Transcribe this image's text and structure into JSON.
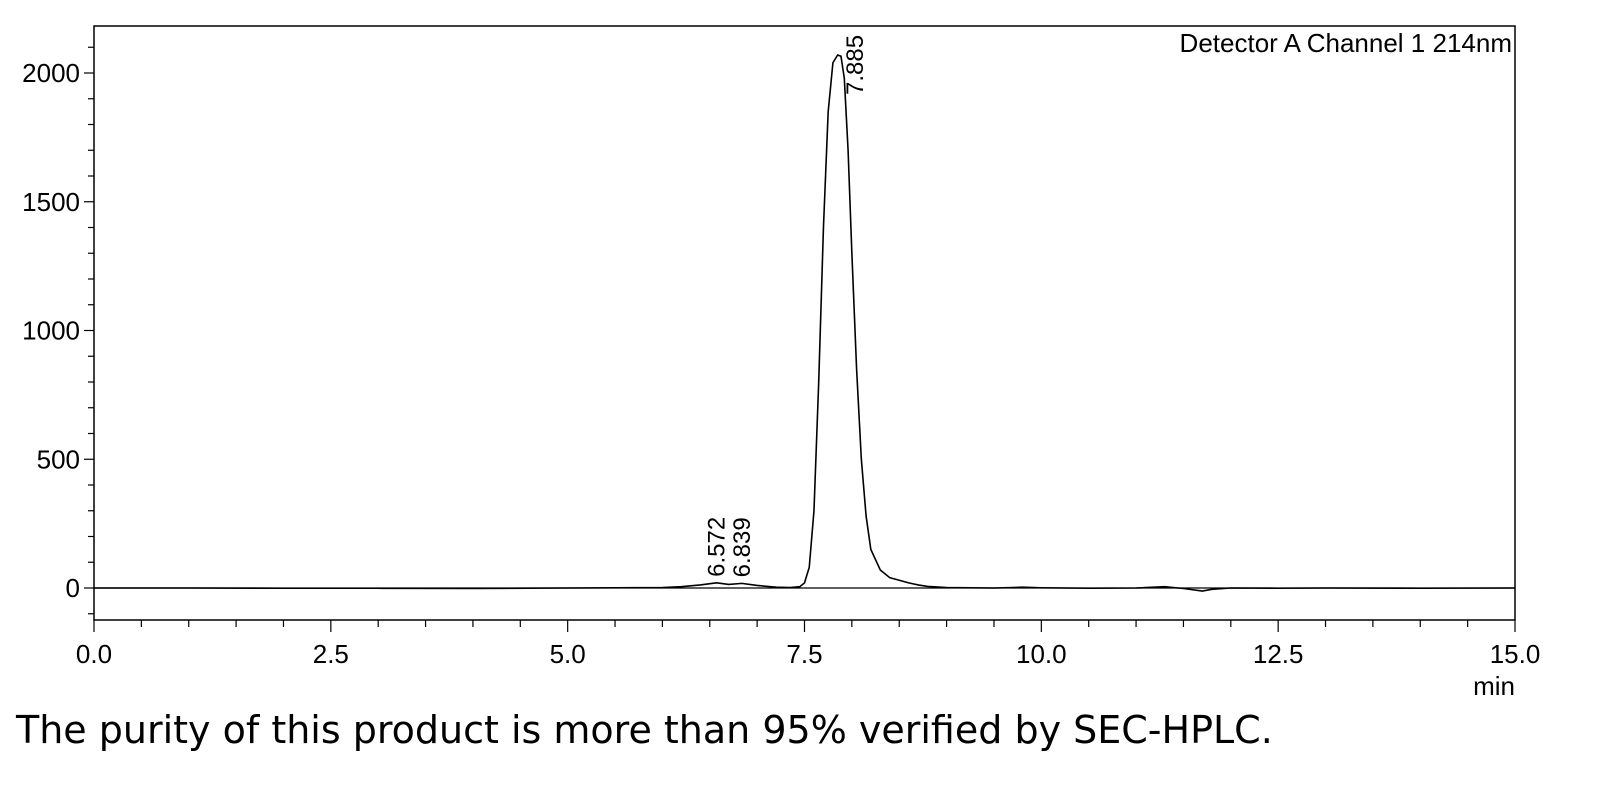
{
  "chart_data": {
    "type": "line",
    "channel_label": "Detector A Channel 1 214nm",
    "xlabel": "min",
    "ylabel": "",
    "xlim": [
      0.0,
      15.0
    ],
    "ylim": [
      -120,
      2200
    ],
    "x_ticks": [
      "0.0",
      "2.5",
      "5.0",
      "7.5",
      "10.0",
      "12.5",
      "15.0"
    ],
    "x_tick_values": [
      0.0,
      2.5,
      5.0,
      7.5,
      10.0,
      12.5,
      15.0
    ],
    "y_ticks": [
      "0",
      "500",
      "1000",
      "1500",
      "2000"
    ],
    "y_tick_values": [
      0,
      500,
      1000,
      1500,
      2000
    ],
    "peaks": [
      {
        "label": "6.572",
        "x": 6.572,
        "y": 20
      },
      {
        "label": "6.839",
        "x": 6.839,
        "y": 18
      },
      {
        "label": "7.885",
        "x": 7.885,
        "y": 2070
      }
    ],
    "series": [
      {
        "x": [
          0.0,
          1.0,
          2.0,
          3.0,
          4.0,
          5.0,
          5.5,
          6.0,
          6.2,
          6.4,
          6.572,
          6.7,
          6.839,
          7.0,
          7.2,
          7.35,
          7.45,
          7.5,
          7.55,
          7.6,
          7.65,
          7.7,
          7.75,
          7.8,
          7.85,
          7.885,
          7.92,
          7.96,
          8.0,
          8.05,
          8.1,
          8.15,
          8.2,
          8.3,
          8.4,
          8.5,
          8.6,
          8.7,
          8.8,
          9.0,
          9.5,
          9.8,
          10.0,
          10.5,
          11.0,
          11.3,
          11.5,
          11.7,
          11.8,
          12.0,
          12.5,
          13.0,
          14.0,
          15.0
        ],
        "values": [
          0,
          0,
          -1,
          -1,
          -2,
          0,
          1,
          2,
          5,
          12,
          20,
          14,
          18,
          10,
          3,
          2,
          5,
          20,
          80,
          300,
          800,
          1400,
          1850,
          2040,
          2070,
          2065,
          1980,
          1700,
          1300,
          850,
          500,
          280,
          150,
          70,
          40,
          30,
          20,
          12,
          6,
          2,
          0,
          3,
          1,
          -1,
          0,
          5,
          -2,
          -12,
          -5,
          0,
          -1,
          0,
          -1,
          0
        ]
      }
    ],
    "caption": "The purity of this product is more than 95% verified by SEC-HPLC."
  }
}
